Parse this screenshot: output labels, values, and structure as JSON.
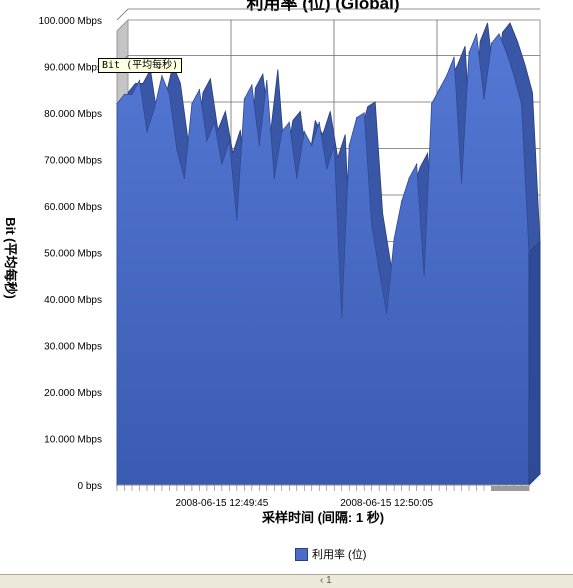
{
  "chart_data": {
    "type": "area",
    "title": "利用率 (位) (Global)",
    "xlabel": "采样时间 (间隔: 1 秒)",
    "ylabel": "Bit (平均每秒)",
    "ylim": [
      0,
      100
    ],
    "y_unit": "Mbps",
    "y_ticks": [
      "0 bps",
      "10.000 Mbps",
      "20.000 Mbps",
      "30.000 Mbps",
      "40.000 Mbps",
      "50.000 Mbps",
      "60.000 Mbps",
      "70.000 Mbps",
      "80.000 Mbps",
      "90.000 Mbps",
      "100.000 Mbps"
    ],
    "x_tick_labels": [
      "2008-06-15 12:49:45",
      "2008-06-15 12:50:05"
    ],
    "grid": true,
    "legend_position": "bottom",
    "series": [
      {
        "name": "利用率 (位)",
        "color": "#4a6cc8",
        "values": [
          82,
          84,
          84,
          87,
          76,
          81,
          88,
          84,
          72,
          66,
          82,
          85,
          74,
          78,
          69,
          74,
          57,
          83,
          86,
          73,
          87,
          66,
          76,
          78,
          66,
          76,
          73,
          78,
          68,
          73,
          36,
          73,
          79,
          80,
          56,
          46,
          37,
          53,
          61,
          66,
          69,
          45,
          82,
          85,
          88,
          92,
          65,
          93,
          97,
          83,
          95,
          97,
          93,
          88,
          82,
          50
        ]
      }
    ]
  },
  "tooltip": {
    "text": "Bit (平均每秒)"
  },
  "statusbar": {
    "text": "‹ 1 "
  }
}
